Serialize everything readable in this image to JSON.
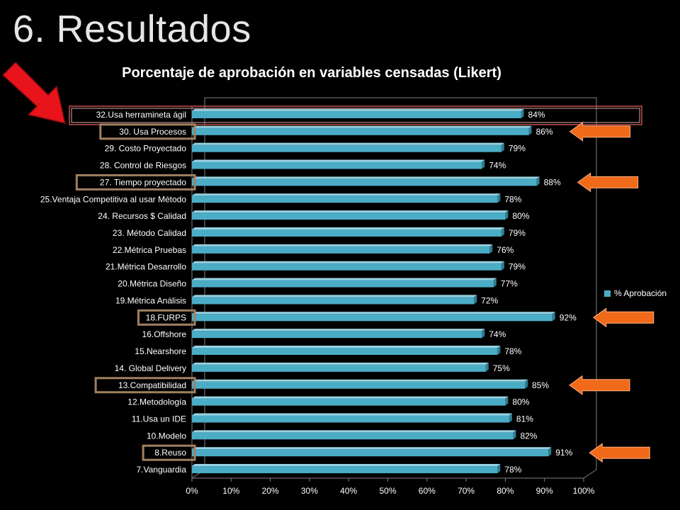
{
  "slide": {
    "title": "6. Resultados"
  },
  "chart_data": {
    "type": "bar",
    "orientation": "horizontal",
    "title": "Porcentaje de aprobación en variables censadas (Likert)",
    "xlabel": "",
    "ylabel": "",
    "xlim": [
      0,
      100
    ],
    "x_ticks": [
      "0%",
      "10%",
      "20%",
      "30%",
      "40%",
      "50%",
      "60%",
      "70%",
      "80%",
      "90%",
      "100%"
    ],
    "grid": false,
    "legend_position": "right",
    "categories": [
      "32.Usa herramineta ágil",
      "30. Usa Procesos",
      "29. Costo Proyectado",
      "28. Control de Riesgos",
      "27. Tiempo proyectado",
      "25.Ventaja Competitiva al usar Método",
      "24. Recursos $ Calidad",
      "23. Método Calidad",
      "22.Métrica Pruebas",
      "21.Métrica Desarrollo",
      "20.Métrica Diseño",
      "19.Métrica Análisis",
      "18.FURPS",
      "16.Offshore",
      "15.Nearshore",
      "14. Global Delivery",
      "13.Compatibilidad",
      "12.Metodología",
      "11.Usa un IDE",
      "10.Modelo",
      "8.Reuso",
      "7.Vanguardia"
    ],
    "series": [
      {
        "name": "% Aprobación",
        "color": "#4bacc6",
        "values": [
          84,
          86,
          79,
          74,
          88,
          78,
          80,
          79,
          76,
          79,
          77,
          72,
          92,
          74,
          78,
          75,
          85,
          80,
          81,
          82,
          91,
          78
        ],
        "labels": [
          "84%",
          "86%",
          "79%",
          "74%",
          "88%",
          "78%",
          "80%",
          "79%",
          "76%",
          "79%",
          "77%",
          "72%",
          "92%",
          "74%",
          "78%",
          "75%",
          "85%",
          "80%",
          "81%",
          "82%",
          "91%",
          "78%"
        ]
      }
    ],
    "highlighted_categories": [
      "32.Usa herramineta ágil",
      "30. Usa Procesos",
      "27. Tiempo proyectado",
      "18.FURPS",
      "13.Compatibilidad",
      "8.Reuso"
    ],
    "annotations": {
      "red_arrow_target": "32.Usa herramineta ágil",
      "orange_arrow_targets": [
        "30. Usa Procesos",
        "27. Tiempo proyectado",
        "18.FURPS",
        "13.Compatibilidad",
        "8.Reuso"
      ]
    }
  },
  "colors": {
    "background": "#000000",
    "bar": "#4bacc6",
    "highlight_box": "#c0504d",
    "category_box": "#a08060",
    "arrow_red": "#e8131b",
    "arrow_orange": "#f06a1a",
    "text": "#ffffff"
  }
}
